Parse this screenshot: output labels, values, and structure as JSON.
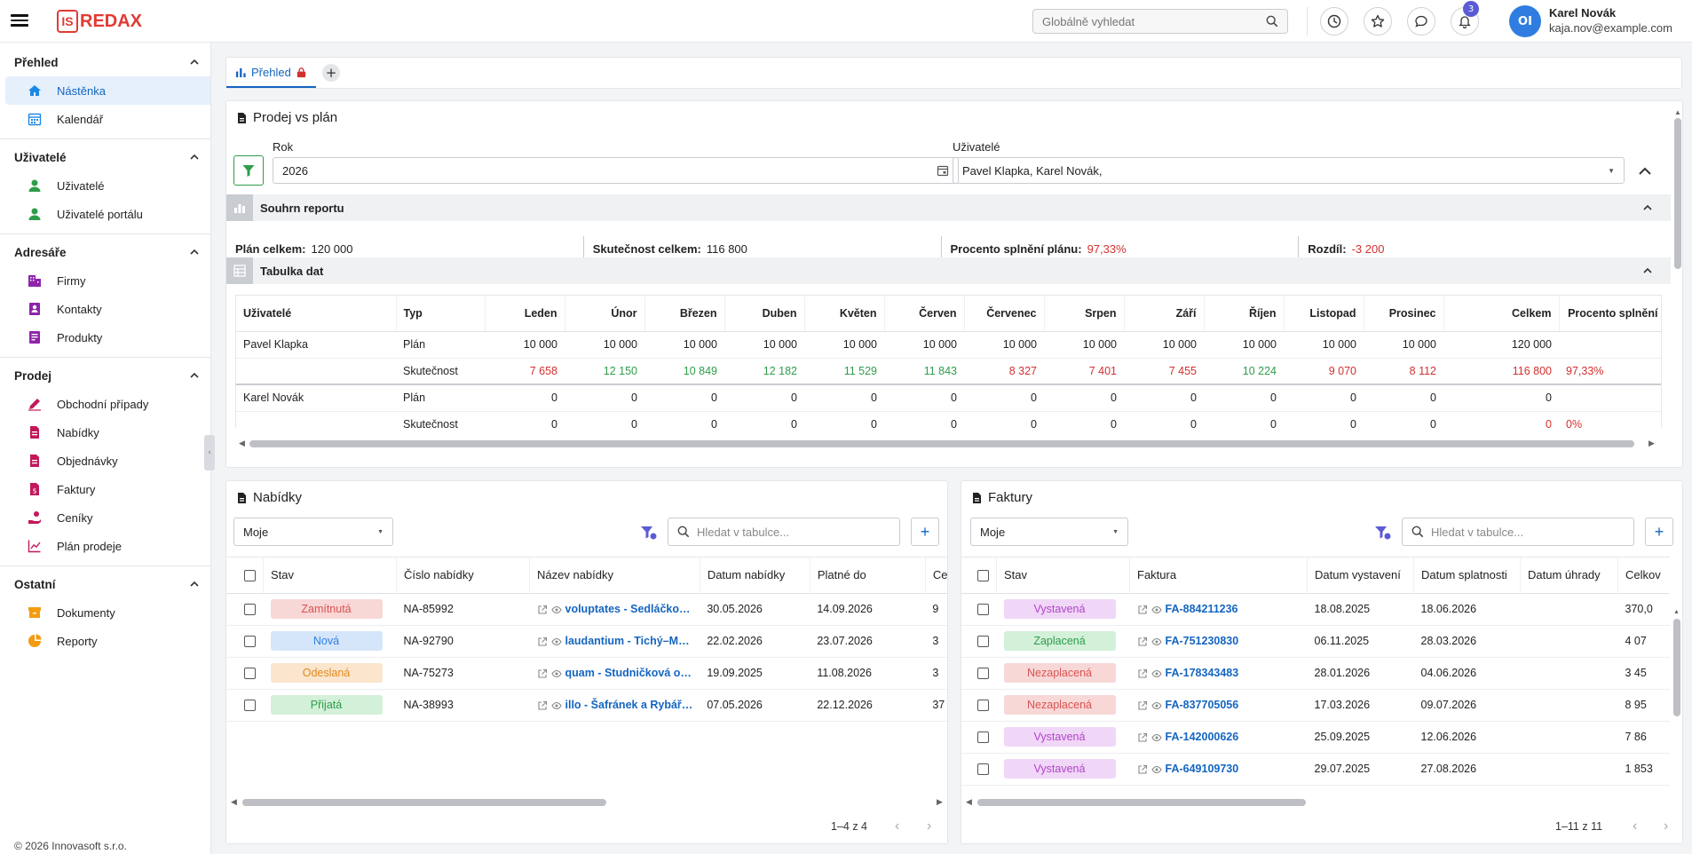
{
  "topbar": {
    "logo_box": "IS",
    "logo_text": "REDAX",
    "search_placeholder": "Globálně vyhledat",
    "notifications_count": "3",
    "avatar_initials": "OI",
    "user_name": "Karel Novák",
    "user_email": "kaja.nov@example.com"
  },
  "sidebar": {
    "sections": [
      {
        "title": "Přehled",
        "items": [
          {
            "label": "Nástěnka",
            "icon": "home-icon",
            "active": true
          },
          {
            "label": "Kalendář",
            "icon": "calendar-icon"
          }
        ]
      },
      {
        "title": "Uživatelé",
        "items": [
          {
            "label": "Uživatelé",
            "icon": "user-icon"
          },
          {
            "label": "Uživatelé portálu",
            "icon": "user-icon"
          }
        ]
      },
      {
        "title": "Adresáře",
        "items": [
          {
            "label": "Firmy",
            "icon": "building-icon"
          },
          {
            "label": "Kontakty",
            "icon": "contact-icon"
          },
          {
            "label": "Produkty",
            "icon": "box-icon"
          }
        ]
      },
      {
        "title": "Prodej",
        "items": [
          {
            "label": "Obchodní případy",
            "icon": "pen-icon"
          },
          {
            "label": "Nabídky",
            "icon": "doc-icon"
          },
          {
            "label": "Objednávky",
            "icon": "doc-icon"
          },
          {
            "label": "Faktury",
            "icon": "invoice-icon"
          },
          {
            "label": "Ceníky",
            "icon": "hand-coin-icon"
          },
          {
            "label": "Plán prodeje",
            "icon": "trend-icon"
          }
        ]
      },
      {
        "title": "Ostatní",
        "items": [
          {
            "label": "Dokumenty",
            "icon": "archive-icon"
          },
          {
            "label": "Reporty",
            "icon": "pie-icon"
          }
        ]
      }
    ],
    "copyright": "© 2026 Innovasoft s.r.o."
  },
  "tabs": {
    "active": "Přehled"
  },
  "sales": {
    "title": "Prodej vs plán",
    "year_label": "Rok",
    "year_value": "2026",
    "users_label": "Uživatelé",
    "users_value": "Pavel Klapka, Karel Novák,",
    "summary_title": "Souhrn reportu",
    "plan_label": "Plán celkem:",
    "plan_value": "120 000",
    "actual_label": "Skutečnost celkem:",
    "actual_value": "116 800",
    "percent_label": "Procento splnění plánu:",
    "percent_value": "97,33%",
    "diff_label": "Rozdíl:",
    "diff_value": "-3 200",
    "table_title": "Tabulka dat",
    "columns": [
      "Uživatelé",
      "Typ",
      "Leden",
      "Únor",
      "Březen",
      "Duben",
      "Květen",
      "Červen",
      "Červenec",
      "Srpen",
      "Září",
      "Říjen",
      "Listopad",
      "Prosinec",
      "Celkem",
      "Procento splnění"
    ],
    "rows": [
      {
        "user": "Pavel Klapka",
        "type": "Plán",
        "values": [
          "10 000",
          "10 000",
          "10 000",
          "10 000",
          "10 000",
          "10 000",
          "10 000",
          "10 000",
          "10 000",
          "10 000",
          "10 000",
          "10 000"
        ],
        "total": "120 000",
        "percent": "",
        "colors": []
      },
      {
        "user": "",
        "type": "Skutečnost",
        "values": [
          "7 658",
          "12 150",
          "10 849",
          "12 182",
          "11 529",
          "11 843",
          "8 327",
          "7 401",
          "7 455",
          "10 224",
          "9 070",
          "8 112"
        ],
        "total": "116 800",
        "percent": "97,33%",
        "colors": [
          "red",
          "green",
          "green",
          "green",
          "green",
          "green",
          "red",
          "red",
          "red",
          "green",
          "red",
          "red"
        ]
      },
      {
        "user": "Karel Novák",
        "type": "Plán",
        "values": [
          "0",
          "0",
          "0",
          "0",
          "0",
          "0",
          "0",
          "0",
          "0",
          "0",
          "0",
          "0"
        ],
        "total": "0",
        "percent": "",
        "colors": []
      },
      {
        "user": "",
        "type": "Skutečnost",
        "values": [
          "0",
          "0",
          "0",
          "0",
          "0",
          "0",
          "0",
          "0",
          "0",
          "0",
          "0",
          "0"
        ],
        "total": "0",
        "percent": "0%",
        "colors": []
      }
    ]
  },
  "offers": {
    "title": "Nabídky",
    "filter_value": "Moje",
    "search_placeholder": "Hledat v tabulce...",
    "columns": [
      "Stav",
      "Číslo nabídky",
      "Název nabídky",
      "Datum nabídky",
      "Platné do",
      "Ce"
    ],
    "rows": [
      {
        "status": "Zamítnutá",
        "status_type": "rejected",
        "number": "NA-85992",
        "name": "voluptates - Sedláčko…",
        "date": "30.05.2026",
        "valid": "14.09.2026",
        "price": "9"
      },
      {
        "status": "Nová",
        "status_type": "new",
        "number": "NA-92790",
        "name": "laudantium - Tichý–M…",
        "date": "22.02.2026",
        "valid": "23.07.2026",
        "price": "3"
      },
      {
        "status": "Odeslaná",
        "status_type": "sent",
        "number": "NA-75273",
        "name": "quam - Studničková o…",
        "date": "19.09.2025",
        "valid": "11.08.2026",
        "price": "3"
      },
      {
        "status": "Přijatá",
        "status_type": "accepted",
        "number": "NA-38993",
        "name": "illo - Šafránek a Rybář…",
        "date": "07.05.2026",
        "valid": "22.12.2026",
        "price": "37"
      }
    ],
    "pager": "1–4 z 4"
  },
  "invoices": {
    "title": "Faktury",
    "filter_value": "Moje",
    "search_placeholder": "Hledat v tabulce...",
    "columns": [
      "Stav",
      "Faktura",
      "Datum vystavení",
      "Datum splatnosti",
      "Datum úhrady",
      "Celkov"
    ],
    "rows": [
      {
        "status": "Vystavená",
        "status_type": "issued",
        "number": "FA-884211236",
        "issued": "18.08.2025",
        "due": "18.06.2026",
        "paid": "",
        "total": "370,0"
      },
      {
        "status": "Zaplacená",
        "status_type": "paid",
        "number": "FA-751230830",
        "issued": "06.11.2025",
        "due": "28.03.2026",
        "paid": "",
        "total": "4 07"
      },
      {
        "status": "Nezaplacená",
        "status_type": "unpaid",
        "number": "FA-178343483",
        "issued": "28.01.2026",
        "due": "04.06.2026",
        "paid": "",
        "total": "3 45"
      },
      {
        "status": "Nezaplacená",
        "status_type": "unpaid",
        "number": "FA-837705056",
        "issued": "17.03.2026",
        "due": "09.07.2026",
        "paid": "",
        "total": "8 95"
      },
      {
        "status": "Vystavená",
        "status_type": "issued",
        "number": "FA-142000626",
        "issued": "25.09.2025",
        "due": "12.06.2026",
        "paid": "",
        "total": "7 86"
      },
      {
        "status": "Vystavená",
        "status_type": "issued",
        "number": "FA-649109730",
        "issued": "29.07.2025",
        "due": "27.08.2026",
        "paid": "",
        "total": "1 853"
      }
    ],
    "pager": "1–11 z 11"
  },
  "status_colors": {
    "rejected": {
      "bg": "#f8d7d7",
      "fg": "#d9534f"
    },
    "new": {
      "bg": "#d6e6fa",
      "fg": "#2f7de1"
    },
    "sent": {
      "bg": "#fbe5cc",
      "fg": "#e08a1e"
    },
    "accepted": {
      "bg": "#d3f0d9",
      "fg": "#2e9d4a"
    },
    "issued": {
      "bg": "#f1d7f7",
      "fg": "#b045c9"
    },
    "paid": {
      "bg": "#d3f0d9",
      "fg": "#2e9d4a"
    },
    "unpaid": {
      "bg": "#f8d7d7",
      "fg": "#d9534f"
    }
  },
  "colors": {
    "accent": "#1565c0",
    "brand": "#e23a33",
    "green": "#2e9d4a",
    "red": "#d32f2f"
  }
}
